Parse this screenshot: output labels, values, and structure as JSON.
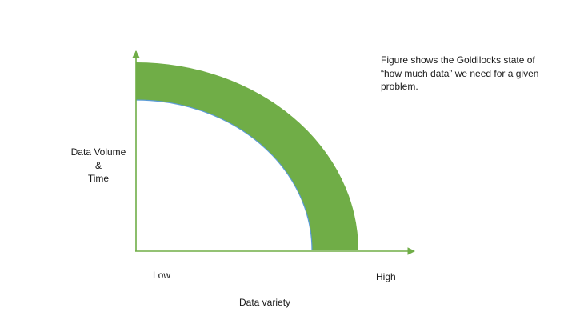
{
  "diagram": {
    "y_axis_label": [
      "Data Volume",
      "&",
      "Time"
    ],
    "x_axis_low": "Low",
    "x_axis_high": "High",
    "x_axis_label": "Data variety",
    "caption": "Figure shows the Goldilocks state of “how much data” we need for a given problem.",
    "band_color": "#70ad47",
    "axis_color": "#70ad47",
    "inner_edge_color": "#5b9bd5"
  }
}
